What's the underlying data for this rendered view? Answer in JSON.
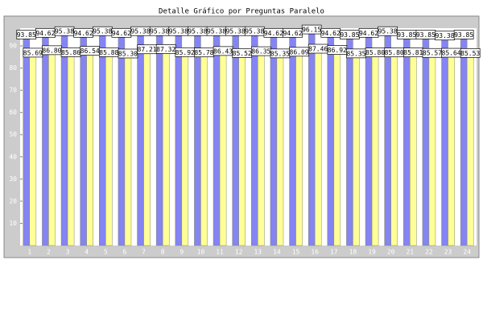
{
  "chart_data": {
    "type": "bar",
    "title": "Detalle Gráfico por Preguntas Paralelo",
    "categories": [
      "1",
      "2",
      "3",
      "4",
      "5",
      "6",
      "7",
      "8",
      "9",
      "10",
      "11",
      "12",
      "13",
      "14",
      "15",
      "16",
      "17",
      "18",
      "19",
      "20",
      "21",
      "22",
      "23",
      "24"
    ],
    "series": [
      {
        "color": "#8484f2",
        "values": [
          93.85,
          94.62,
          95.38,
          94.62,
          95.38,
          94.62,
          95.38,
          95.38,
          95.38,
          95.38,
          95.38,
          95.38,
          95.38,
          94.62,
          94.62,
          96.15,
          94.62,
          93.85,
          94.62,
          95.38,
          93.85,
          93.85,
          93.38,
          93.85
        ],
        "value_labels": [
          "93.85",
          "94.62",
          "95.38",
          "94.62",
          "95.38",
          "94.62",
          "95.38",
          "95.38",
          "95.38",
          "95.38",
          "95.38",
          "95.38",
          "95.38",
          "94.62",
          "94.62",
          "96.15",
          "94.62",
          "93.85",
          "94.62",
          "95.38",
          "93.85",
          "93.85",
          "93.38",
          "93.85"
        ]
      },
      {
        "color": "#ffff99",
        "values": [
          85.69,
          86.8,
          85.86,
          86.54,
          85.88,
          85.3,
          87.21,
          87.32,
          85.92,
          85.78,
          86.43,
          85.52,
          86.35,
          85.35,
          86.09,
          87.46,
          86.92,
          85.35,
          85.8,
          85.8,
          85.81,
          85.57,
          85.64,
          85.53
        ],
        "value_labels": [
          "85.69",
          "86.80",
          "85.86",
          "86.54",
          "85.88",
          "85.30",
          "87.21",
          "87.32",
          "85.92",
          "85.78",
          "86.43",
          "85.52",
          "86.35",
          "85.35",
          "86.09",
          "87.46",
          "86.92",
          "85.35",
          "85.80",
          "85.80",
          "85.81",
          "85.57",
          "85.64",
          "85.53"
        ]
      }
    ],
    "ylim": [
      0,
      98
    ],
    "yticks": [
      10,
      20,
      30,
      40,
      50,
      60,
      70,
      80,
      90
    ],
    "grid": false
  }
}
